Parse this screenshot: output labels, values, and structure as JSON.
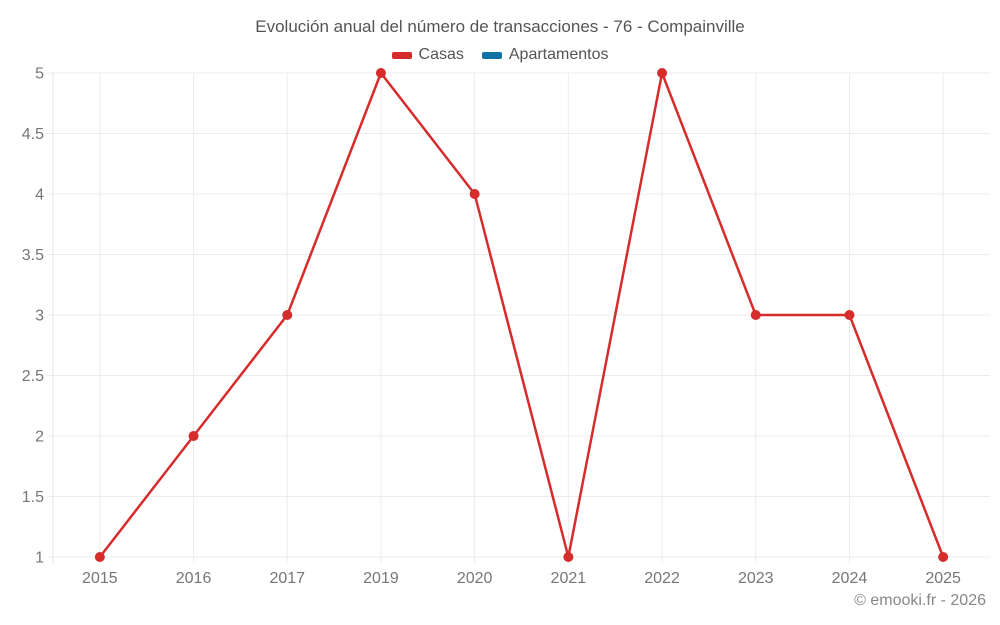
{
  "title": "Evolución anual del número de transacciones - 76 - Compainville",
  "watermark": "© emooki.fr - 2026",
  "colors": {
    "casas": "#d62c2c",
    "apartamentos": "#1272a5",
    "grid": "#ececec",
    "axis_line": "#e4e4e4",
    "tick_label": "#767676",
    "title_text": "#545454",
    "watermark_text": "#878787",
    "background": "#ffffff"
  },
  "chart_data": {
    "type": "line",
    "title": "Evolución anual del número de transacciones - 76 - Compainville",
    "categories": [
      "2015",
      "2016",
      "2017",
      "2019",
      "2020",
      "2021",
      "2022",
      "2023",
      "2024",
      "2025"
    ],
    "series": [
      {
        "name": "Casas",
        "color": "#d62c2c",
        "values": [
          1,
          2,
          3,
          5,
          4,
          1,
          5,
          3,
          3,
          1
        ]
      },
      {
        "name": "Apartamentos",
        "color": "#1272a5",
        "values": null
      }
    ],
    "xlabel": "",
    "ylabel": "",
    "ylim": [
      1,
      5
    ],
    "ytick_step": 0.5,
    "grid": true,
    "legend_position": "top",
    "marker_radius": 5,
    "line_width": 2.5
  }
}
